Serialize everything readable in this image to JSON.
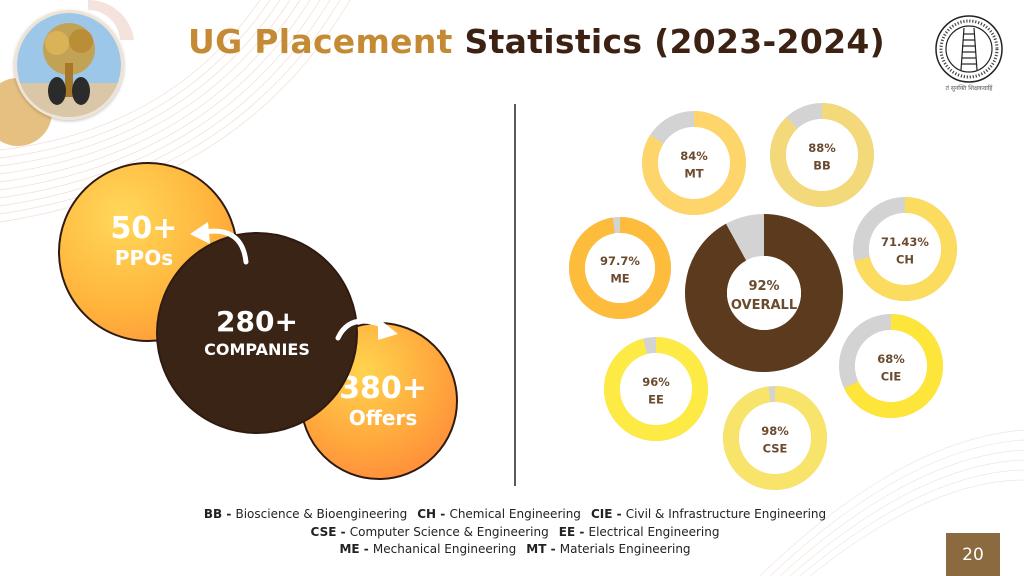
{
  "title": {
    "part1": "UG Placement",
    "part2": "Statistics (2023-2024)"
  },
  "stats": {
    "ppos": {
      "number": "50+",
      "label": "PPOs"
    },
    "companies": {
      "number": "280+",
      "label": "COMPANIES"
    },
    "offers": {
      "number": "380+",
      "label": "Offers"
    }
  },
  "logo_caption": "तं सुनक्ति शिक्षकवाहिं",
  "chart_data": {
    "type": "pie",
    "variant": "donut",
    "title": "",
    "slices": [
      {
        "label": "OVERALL",
        "value": 92,
        "text": "92%",
        "color": "#5c3a1e"
      },
      {
        "label": "MT",
        "value": 84,
        "text": "84%",
        "color": "#fdd56a"
      },
      {
        "label": "BB",
        "value": 88,
        "text": "88%",
        "color": "#f3d97a"
      },
      {
        "label": "ME",
        "value": 97.7,
        "text": "97.7%",
        "color": "#fdbc3c"
      },
      {
        "label": "CH",
        "value": 71.43,
        "text": "71.43%",
        "color": "#fbdc5e"
      },
      {
        "label": "CIE",
        "value": 68,
        "text": "68%",
        "color": "#fde53a"
      },
      {
        "label": "EE",
        "value": 96,
        "text": "96%",
        "color": "#fdea44"
      },
      {
        "label": "CSE",
        "value": 98,
        "text": "98%",
        "color": "#f8e46a"
      }
    ],
    "remainder_color": "#d3d3d3"
  },
  "legend": [
    [
      {
        "abbr": "BB",
        "name": "Bioscience & Bioengineering"
      },
      {
        "abbr": "CH",
        "name": "Chemical Engineering"
      },
      {
        "abbr": "CIE",
        "name": "Civil & Infrastructure Engineering"
      }
    ],
    [
      {
        "abbr": "CSE",
        "name": "Computer Science & Engineering"
      },
      {
        "abbr": "EE",
        "name": "Electrical Engineering"
      }
    ],
    [
      {
        "abbr": "ME",
        "name": "Mechanical Engineering"
      },
      {
        "abbr": "MT",
        "name": "Materials Engineering"
      }
    ]
  ],
  "page_number": "20"
}
